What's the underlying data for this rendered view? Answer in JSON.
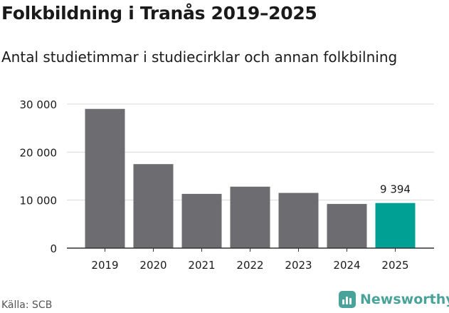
{
  "title": "Folkbildning i Tranås 2019–2025",
  "subtitle": "Antal studietimmar i studiecirklar och annan folkbilning",
  "source": "Källa: SCB",
  "brand": "Newsworthy",
  "colors": {
    "bar": "#6d6c70",
    "highlight": "#00a195",
    "grid": "#d9d9d9",
    "axis": "#333333",
    "brand": "#4aa39a"
  },
  "chart_data": {
    "type": "bar",
    "title": "Folkbildning i Tranås 2019–2025",
    "subtitle": "Antal studietimmar i studiecirklar och annan folkbilning",
    "xlabel": "",
    "ylabel": "",
    "categories": [
      "2019",
      "2020",
      "2021",
      "2022",
      "2023",
      "2024",
      "2025"
    ],
    "values": [
      29000,
      17500,
      11300,
      12800,
      11500,
      9200,
      9394
    ],
    "highlight_index": 6,
    "data_labels": [
      {
        "index": 6,
        "text": "9 394"
      }
    ],
    "y_ticks": [
      0,
      10000,
      20000,
      30000
    ],
    "y_tick_labels": [
      "0",
      "10 000",
      "20 000",
      "30 000"
    ],
    "ylim": [
      0,
      30000
    ],
    "grid": true
  }
}
